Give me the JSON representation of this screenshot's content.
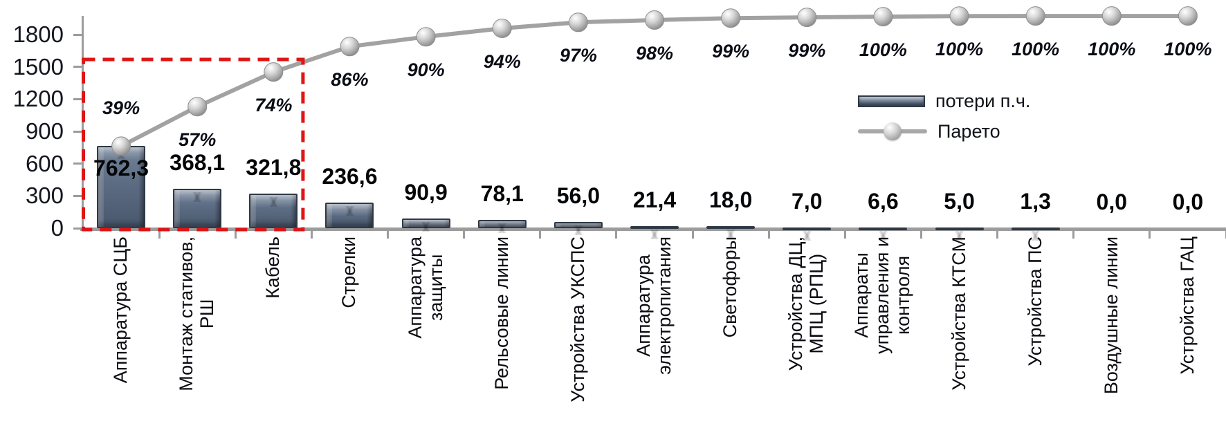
{
  "chart_data": {
    "type": "pareto (bar + cumulative line)",
    "title": "",
    "xlabel": "",
    "ylabel": "",
    "ylim": [
      0,
      1800
    ],
    "ytick_step": 300,
    "yticks": [
      "0",
      "300",
      "600",
      "900",
      "1200",
      "1500",
      "1800"
    ],
    "grid": "off",
    "legend_position": "right-middle",
    "categories": [
      {
        "lines": [
          "Аппаратура СЦБ"
        ]
      },
      {
        "lines": [
          "Монтаж стативов,",
          "РШ"
        ]
      },
      {
        "lines": [
          "Кабель"
        ]
      },
      {
        "lines": [
          "Стрелки"
        ]
      },
      {
        "lines": [
          "Аппаратура",
          "защиты"
        ]
      },
      {
        "lines": [
          "Рельсовые линии"
        ]
      },
      {
        "lines": [
          "Устройства УКСПС"
        ]
      },
      {
        "lines": [
          "Аппаратура",
          "электропитания"
        ]
      },
      {
        "lines": [
          "Светофоры"
        ]
      },
      {
        "lines": [
          "Устройства ДЦ,",
          "МПЦ (РПЦ)"
        ]
      },
      {
        "lines": [
          "Аппараты",
          "управления и",
          "контроля"
        ]
      },
      {
        "lines": [
          "Устройства КТСМ"
        ]
      },
      {
        "lines": [
          "Устройства ПС"
        ]
      },
      {
        "lines": [
          "Воздушные линии"
        ]
      },
      {
        "lines": [
          "Устройства ГАЦ"
        ]
      }
    ],
    "series": [
      {
        "name": "потери п.ч.",
        "type": "bar",
        "values": [
          762.3,
          368.1,
          321.8,
          236.6,
          90.9,
          78.1,
          56.0,
          21.4,
          18.0,
          7.0,
          6.6,
          5.0,
          1.3,
          0.0,
          0.0
        ],
        "value_labels": [
          "762,3",
          "368,1",
          "321,8",
          "236,6",
          "90,9",
          "78,1",
          "56,0",
          "21,4",
          "18,0",
          "7,0",
          "6,6",
          "5,0",
          "1,3",
          "0,0",
          "0,0"
        ]
      },
      {
        "name": "Парето",
        "type": "line",
        "cumulative_values": [
          762.3,
          1130.4,
          1452.2,
          1688.8,
          1779.7,
          1857.8,
          1913.8,
          1935.2,
          1953.2,
          1960.2,
          1966.8,
          1971.8,
          1973.1,
          1973.1,
          1973.1
        ],
        "percent_values": [
          39,
          57,
          74,
          86,
          90,
          94,
          97,
          98,
          99,
          99,
          100,
          100,
          100,
          100,
          100
        ],
        "percent_labels": [
          "39%",
          "57%",
          "74%",
          "86%",
          "90%",
          "94%",
          "97%",
          "98%",
          "99%",
          "99%",
          "100%",
          "100%",
          "100%",
          "100%",
          "100%"
        ]
      }
    ],
    "annotations": {
      "highlight_box": {
        "style": "red dashed rectangle",
        "covers_categories": [
          "Аппаратура СЦБ",
          "Монтаж стативов, РШ",
          "Кабель"
        ],
        "covers_count": 3
      }
    }
  },
  "colors": {
    "background": "#ffffff",
    "bar_fill": "#5c6c82",
    "bar_border": "#2e3945",
    "line": "#a2a2a2",
    "marker": "#c9c9c9",
    "axis": "#9c9c9c",
    "text": "#14161f",
    "highlight_box": "#de1515"
  }
}
